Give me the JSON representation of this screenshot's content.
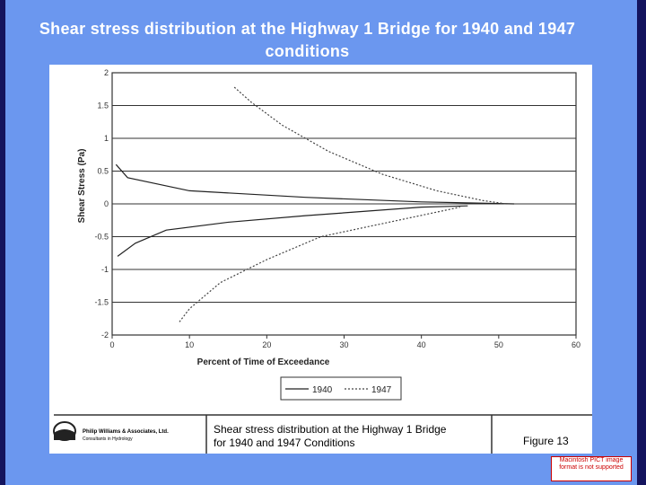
{
  "slide_title": "Shear stress distribution at the Highway 1 Bridge for 1940 and 1947 conditions",
  "chart_data": {
    "type": "line",
    "xlabel": "Percent of Time of Exceedance",
    "ylabel": "Shear Stress (Pa)",
    "xlim": [
      0,
      60
    ],
    "ylim": [
      -2,
      2
    ],
    "xticks": [
      0,
      10,
      20,
      30,
      40,
      50,
      60
    ],
    "yticks": [
      -2,
      -1.5,
      -1,
      -0.5,
      0,
      0.5,
      1,
      1.5,
      2
    ],
    "grid": true,
    "series": [
      {
        "name": "1940",
        "color": "#222222",
        "dash": "solid",
        "curves": [
          {
            "x": [
              0.5,
              2,
              10,
              25,
              40,
              52
            ],
            "y": [
              0.6,
              0.4,
              0.2,
              0.1,
              0.03,
              0
            ]
          },
          {
            "x": [
              0.7,
              3,
              7,
              15,
              25,
              40,
              46
            ],
            "y": [
              -0.8,
              -0.6,
              -0.4,
              -0.28,
              -0.18,
              -0.05,
              -0.03
            ]
          }
        ]
      },
      {
        "name": "1947",
        "color": "#444444",
        "dash": "dotted",
        "curves": [
          {
            "x": [
              15.8,
              18,
              22,
              28,
              35,
              42,
              48,
              51
            ],
            "y": [
              1.78,
              1.55,
              1.2,
              0.8,
              0.45,
              0.2,
              0.05,
              0
            ]
          },
          {
            "x": [
              8.7,
              10,
              14,
              20,
              27,
              35,
              45
            ],
            "y": [
              -1.8,
              -1.6,
              -1.2,
              -0.85,
              -0.5,
              -0.3,
              -0.05
            ]
          }
        ]
      }
    ]
  },
  "caption": {
    "company": "Philip Williams & Associates, Ltd.",
    "tagline": "Consultants in Hydrology",
    "lines": [
      "Shear stress distribution at the Highway 1 Bridge",
      "for 1940 and 1947 Conditions"
    ],
    "figure": "Figure 13"
  },
  "notice": "Macintosh PICT image format is not supported"
}
